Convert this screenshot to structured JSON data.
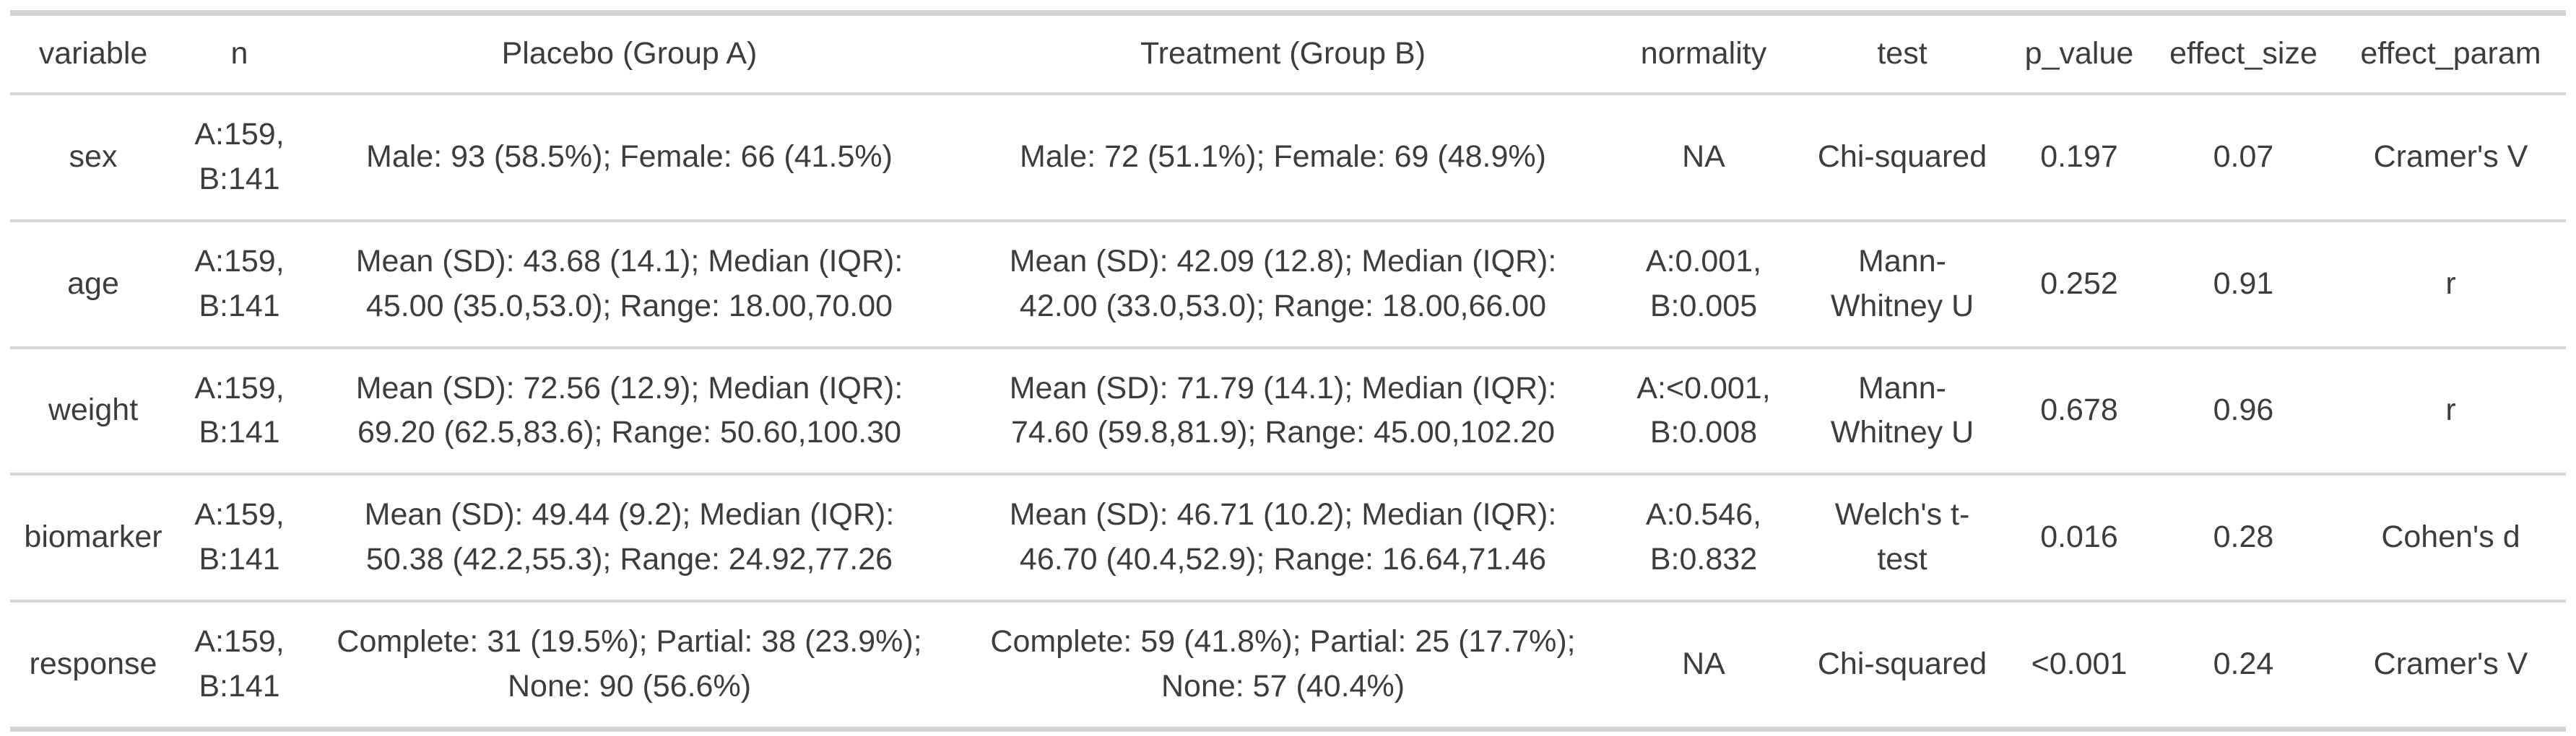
{
  "table": {
    "columns": [
      "variable",
      "n",
      "Placebo (Group A)",
      "Treatment (Group B)",
      "normality",
      "test",
      "p_value",
      "effect_size",
      "effect_param"
    ],
    "rows": [
      {
        "cells": [
          "sex",
          "A:159,\nB:141",
          "Male: 93 (58.5%); Female: 66 (41.5%)",
          "Male: 72 (51.1%); Female: 69 (48.9%)",
          "NA",
          "Chi-squared",
          "0.197",
          "0.07",
          "Cramer's V"
        ]
      },
      {
        "cells": [
          "age",
          "A:159,\nB:141",
          "Mean (SD): 43.68 (14.1); Median (IQR):\n45.00 (35.0,53.0); Range: 18.00,70.00",
          "Mean (SD): 42.09 (12.8); Median (IQR):\n42.00 (33.0,53.0); Range: 18.00,66.00",
          "A:0.001,\nB:0.005",
          "Mann-\nWhitney U",
          "0.252",
          "0.91",
          "r"
        ]
      },
      {
        "cells": [
          "weight",
          "A:159,\nB:141",
          "Mean (SD): 72.56 (12.9); Median (IQR):\n69.20 (62.5,83.6); Range: 50.60,100.30",
          "Mean (SD): 71.79 (14.1); Median (IQR):\n74.60 (59.8,81.9); Range: 45.00,102.20",
          "A:<0.001,\nB:0.008",
          "Mann-\nWhitney U",
          "0.678",
          "0.96",
          "r"
        ]
      },
      {
        "cells": [
          "biomarker",
          "A:159,\nB:141",
          "Mean (SD): 49.44 (9.2); Median (IQR):\n50.38 (42.2,55.3); Range: 24.92,77.26",
          "Mean (SD): 46.71 (10.2); Median (IQR):\n46.70 (40.4,52.9); Range: 16.64,71.46",
          "A:0.546,\nB:0.832",
          "Welch's t-\ntest",
          "0.016",
          "0.28",
          "Cohen's d"
        ]
      },
      {
        "cells": [
          "response",
          "A:159,\nB:141",
          "Complete: 31 (19.5%); Partial: 38 (23.9%);\nNone: 90 (56.6%)",
          "Complete: 59 (41.8%); Partial: 25 (17.7%);\nNone: 57 (40.4%)",
          "NA",
          "Chi-squared",
          "<0.001",
          "0.24",
          "Cramer's V"
        ]
      }
    ]
  },
  "colors": {
    "text": "#3d3d3d",
    "border": "#d4d4d4",
    "background": "#ffffff"
  }
}
